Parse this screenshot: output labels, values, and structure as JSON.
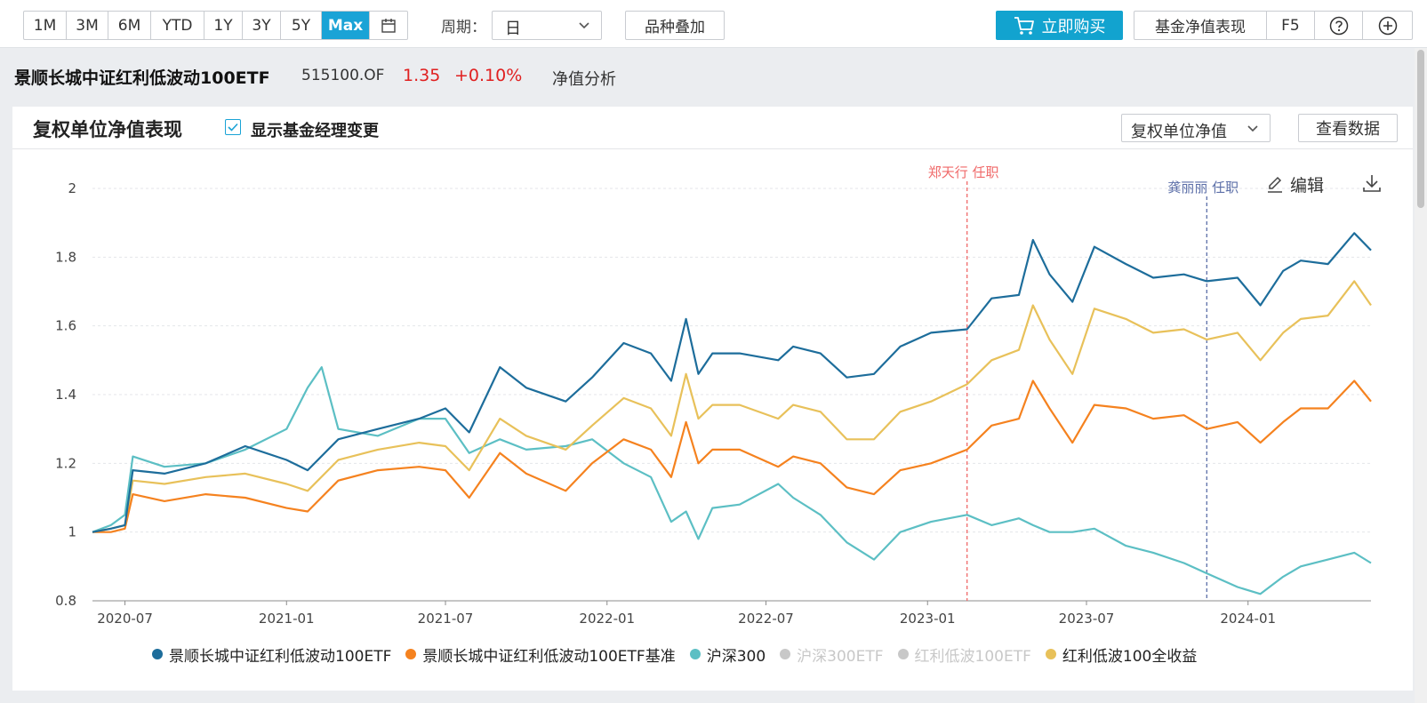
{
  "toolbar": {
    "ranges": [
      {
        "label": "1M",
        "active": false
      },
      {
        "label": "3M",
        "active": false
      },
      {
        "label": "6M",
        "active": false
      },
      {
        "label": "YTD",
        "active": false
      },
      {
        "label": "1Y",
        "active": false
      },
      {
        "label": "3Y",
        "active": false
      },
      {
        "label": "5Y",
        "active": false
      },
      {
        "label": "Max",
        "active": true
      }
    ],
    "calendar_icon": "calendar-icon",
    "period_label": "周期：",
    "period_value": "日",
    "overlay_label": "品种叠加",
    "buy_label": "立即购买",
    "buy_icon": "cart-icon",
    "nav_perf_label": "基金净值表现",
    "f5_label": "F5",
    "help_icon": "help-icon",
    "add_icon": "plus-icon",
    "accent_color": "#12a3cf"
  },
  "fund": {
    "name": "景顺长城中证红利低波动100ETF",
    "code": "515100.OF",
    "nav": "1.35",
    "change": "+0.10%",
    "analysis_link": "净值分析"
  },
  "panel": {
    "title": "复权单位净值表现",
    "manager_change_label": "显示基金经理变更",
    "manager_change_checked": true,
    "metric_select": "复权单位净值",
    "view_data_label": "查看数据",
    "edit_label": "编辑"
  },
  "chart_data": {
    "type": "line",
    "title": "",
    "xlabel": "",
    "ylabel": "",
    "ylim": [
      0.8,
      2.0
    ],
    "y_ticks": [
      "2",
      "1.8",
      "1.6",
      "1.4",
      "1.2",
      "1",
      "0.8"
    ],
    "x_ticks": [
      "2020-07",
      "2021-01",
      "2021-07",
      "2022-01",
      "2022-07",
      "2023-01",
      "2023-07",
      "2024-01"
    ],
    "x_range": [
      "2020-05-25",
      "2024-05-20"
    ],
    "grid": "horizontal dashed",
    "legend_position": "bottom",
    "manager_events": [
      {
        "date": "2023-02-15",
        "label": "郑天行 任职",
        "color": "#f06a6a"
      },
      {
        "date": "2023-11-15",
        "label": "龚丽丽 任职",
        "color": "#5c6fa8"
      }
    ],
    "series": [
      {
        "name": "景顺长城中证红利低波动100ETF",
        "color": "#1d6d9b",
        "visible": true,
        "x": [
          "2020-05-25",
          "2020-06-15",
          "2020-07-01",
          "2020-07-10",
          "2020-08-15",
          "2020-10-01",
          "2020-11-15",
          "2021-01-01",
          "2021-01-25",
          "2021-03-01",
          "2021-04-15",
          "2021-06-01",
          "2021-07-01",
          "2021-07-28",
          "2021-09-01",
          "2021-10-01",
          "2021-11-15",
          "2021-12-15",
          "2022-01-20",
          "2022-02-20",
          "2022-03-15",
          "2022-04-01",
          "2022-04-15",
          "2022-05-01",
          "2022-06-01",
          "2022-07-15",
          "2022-08-01",
          "2022-09-01",
          "2022-10-01",
          "2022-11-01",
          "2022-12-01",
          "2023-01-05",
          "2023-02-15",
          "2023-03-15",
          "2023-04-15",
          "2023-05-01",
          "2023-05-20",
          "2023-06-15",
          "2023-07-10",
          "2023-08-15",
          "2023-09-15",
          "2023-10-20",
          "2023-11-15",
          "2023-12-20",
          "2024-01-15",
          "2024-02-10",
          "2024-03-01",
          "2024-04-01",
          "2024-05-01",
          "2024-05-20"
        ],
        "y": [
          1.0,
          1.01,
          1.02,
          1.18,
          1.17,
          1.2,
          1.25,
          1.21,
          1.18,
          1.27,
          1.3,
          1.33,
          1.36,
          1.29,
          1.48,
          1.42,
          1.38,
          1.45,
          1.55,
          1.52,
          1.44,
          1.62,
          1.46,
          1.52,
          1.52,
          1.5,
          1.54,
          1.52,
          1.45,
          1.46,
          1.54,
          1.58,
          1.59,
          1.68,
          1.69,
          1.85,
          1.75,
          1.67,
          1.83,
          1.78,
          1.74,
          1.75,
          1.73,
          1.74,
          1.66,
          1.76,
          1.79,
          1.78,
          1.87,
          1.82
        ]
      },
      {
        "name": "景顺长城中证红利低波动100ETF基准",
        "color": "#f5821f",
        "visible": true,
        "x": [
          "2020-05-25",
          "2020-06-15",
          "2020-07-01",
          "2020-07-10",
          "2020-08-15",
          "2020-10-01",
          "2020-11-15",
          "2021-01-01",
          "2021-01-25",
          "2021-03-01",
          "2021-04-15",
          "2021-06-01",
          "2021-07-01",
          "2021-07-28",
          "2021-09-01",
          "2021-10-01",
          "2021-11-15",
          "2021-12-15",
          "2022-01-20",
          "2022-02-20",
          "2022-03-15",
          "2022-04-01",
          "2022-04-15",
          "2022-05-01",
          "2022-06-01",
          "2022-07-15",
          "2022-08-01",
          "2022-09-01",
          "2022-10-01",
          "2022-11-01",
          "2022-12-01",
          "2023-01-05",
          "2023-02-15",
          "2023-03-15",
          "2023-04-15",
          "2023-05-01",
          "2023-05-20",
          "2023-06-15",
          "2023-07-10",
          "2023-08-15",
          "2023-09-15",
          "2023-10-20",
          "2023-11-15",
          "2023-12-20",
          "2024-01-15",
          "2024-02-10",
          "2024-03-01",
          "2024-04-01",
          "2024-05-01",
          "2024-05-20"
        ],
        "y": [
          1.0,
          1.0,
          1.01,
          1.11,
          1.09,
          1.11,
          1.1,
          1.07,
          1.06,
          1.15,
          1.18,
          1.19,
          1.18,
          1.1,
          1.23,
          1.17,
          1.12,
          1.2,
          1.27,
          1.24,
          1.16,
          1.32,
          1.2,
          1.24,
          1.24,
          1.19,
          1.22,
          1.2,
          1.13,
          1.11,
          1.18,
          1.2,
          1.24,
          1.31,
          1.33,
          1.44,
          1.36,
          1.26,
          1.37,
          1.36,
          1.33,
          1.34,
          1.3,
          1.32,
          1.26,
          1.32,
          1.36,
          1.36,
          1.44,
          1.38
        ]
      },
      {
        "name": "沪深300",
        "color": "#5cbfc4",
        "visible": true,
        "x": [
          "2020-05-25",
          "2020-06-15",
          "2020-07-01",
          "2020-07-10",
          "2020-08-15",
          "2020-10-01",
          "2020-11-15",
          "2021-01-01",
          "2021-01-25",
          "2021-02-10",
          "2021-03-01",
          "2021-04-15",
          "2021-06-01",
          "2021-07-01",
          "2021-07-28",
          "2021-09-01",
          "2021-10-01",
          "2021-11-15",
          "2021-12-15",
          "2022-01-20",
          "2022-02-20",
          "2022-03-15",
          "2022-04-01",
          "2022-04-15",
          "2022-05-01",
          "2022-06-01",
          "2022-07-15",
          "2022-08-01",
          "2022-09-01",
          "2022-10-01",
          "2022-11-01",
          "2022-12-01",
          "2023-01-05",
          "2023-02-15",
          "2023-03-15",
          "2023-04-15",
          "2023-05-01",
          "2023-05-20",
          "2023-06-15",
          "2023-07-10",
          "2023-08-15",
          "2023-09-15",
          "2023-10-20",
          "2023-11-15",
          "2023-12-20",
          "2024-01-15",
          "2024-02-10",
          "2024-03-01",
          "2024-04-01",
          "2024-05-01",
          "2024-05-20"
        ],
        "y": [
          1.0,
          1.02,
          1.05,
          1.22,
          1.19,
          1.2,
          1.24,
          1.3,
          1.42,
          1.48,
          1.3,
          1.28,
          1.33,
          1.33,
          1.23,
          1.27,
          1.24,
          1.25,
          1.27,
          1.2,
          1.16,
          1.03,
          1.06,
          0.98,
          1.07,
          1.08,
          1.14,
          1.1,
          1.05,
          0.97,
          0.92,
          1.0,
          1.03,
          1.05,
          1.02,
          1.04,
          1.02,
          1.0,
          1.0,
          1.01,
          0.96,
          0.94,
          0.91,
          0.88,
          0.84,
          0.82,
          0.87,
          0.9,
          0.92,
          0.94,
          0.91
        ]
      },
      {
        "name": "沪深300ETF",
        "color": "#c8c8c8",
        "visible": false
      },
      {
        "name": "红利低波100ETF",
        "color": "#c8c8c8",
        "visible": false
      },
      {
        "name": "红利低波100全收益",
        "color": "#e8c15a",
        "visible": true,
        "x": [
          "2020-05-25",
          "2020-06-15",
          "2020-07-01",
          "2020-07-10",
          "2020-08-15",
          "2020-10-01",
          "2020-11-15",
          "2021-01-01",
          "2021-01-25",
          "2021-03-01",
          "2021-04-15",
          "2021-06-01",
          "2021-07-01",
          "2021-07-28",
          "2021-09-01",
          "2021-10-01",
          "2021-11-15",
          "2021-12-15",
          "2022-01-20",
          "2022-02-20",
          "2022-03-15",
          "2022-04-01",
          "2022-04-15",
          "2022-05-01",
          "2022-06-01",
          "2022-07-15",
          "2022-08-01",
          "2022-09-01",
          "2022-10-01",
          "2022-11-01",
          "2022-12-01",
          "2023-01-05",
          "2023-02-15",
          "2023-03-15",
          "2023-04-15",
          "2023-05-01",
          "2023-05-20",
          "2023-06-15",
          "2023-07-10",
          "2023-08-15",
          "2023-09-15",
          "2023-10-20",
          "2023-11-15",
          "2023-12-20",
          "2024-01-15",
          "2024-02-10",
          "2024-03-01",
          "2024-04-01",
          "2024-05-01",
          "2024-05-20"
        ],
        "y": [
          1.0,
          1.01,
          1.02,
          1.15,
          1.14,
          1.16,
          1.17,
          1.14,
          1.12,
          1.21,
          1.24,
          1.26,
          1.25,
          1.18,
          1.33,
          1.28,
          1.24,
          1.31,
          1.39,
          1.36,
          1.28,
          1.46,
          1.33,
          1.37,
          1.37,
          1.33,
          1.37,
          1.35,
          1.27,
          1.27,
          1.35,
          1.38,
          1.43,
          1.5,
          1.53,
          1.66,
          1.56,
          1.46,
          1.65,
          1.62,
          1.58,
          1.59,
          1.56,
          1.58,
          1.5,
          1.58,
          1.62,
          1.63,
          1.73,
          1.66
        ]
      }
    ]
  }
}
